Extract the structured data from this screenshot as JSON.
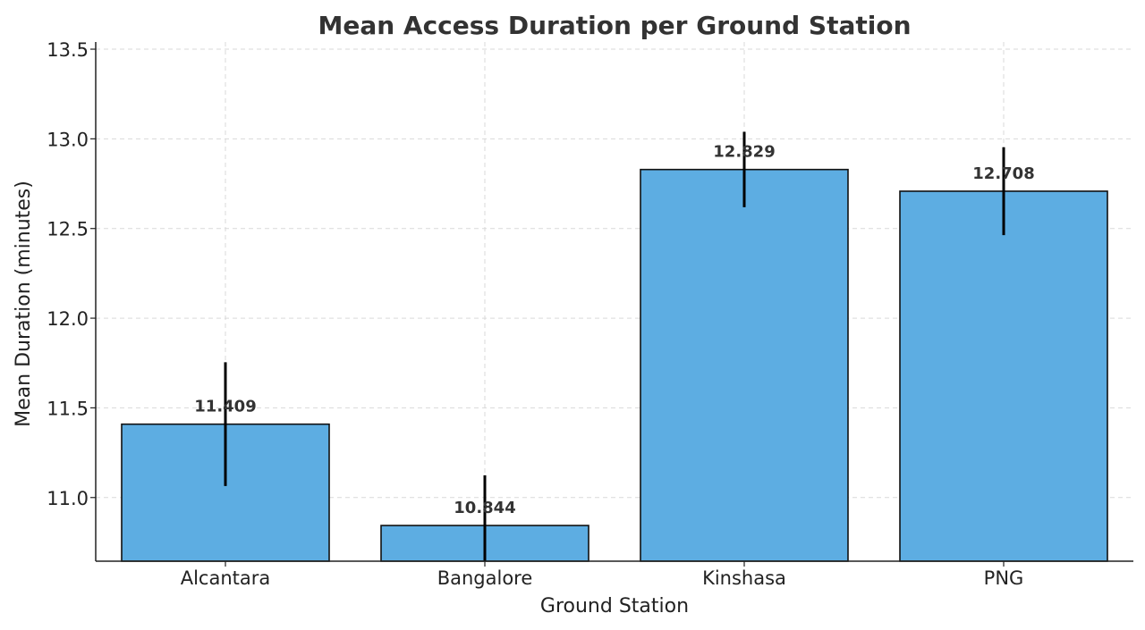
{
  "chart_data": {
    "type": "bar",
    "title": "Mean Access Duration per Ground Station",
    "xlabel": "Ground Station",
    "ylabel": "Mean Duration (minutes)",
    "categories": [
      "Alcantara",
      "Bangalore",
      "Kinshasa",
      "PNG"
    ],
    "values": [
      11.409,
      10.844,
      12.829,
      12.708
    ],
    "value_labels": [
      "11.409",
      "10.844",
      "12.829",
      "12.708"
    ],
    "error": [
      0.345,
      0.28,
      0.21,
      0.245
    ],
    "ylim": [
      10.645,
      13.54
    ],
    "yticks": [
      11.0,
      11.5,
      12.0,
      12.5,
      13.0,
      13.5
    ],
    "ytick_labels": [
      "11.0",
      "11.5",
      "12.0",
      "12.5",
      "13.0",
      "13.5"
    ],
    "grid": true,
    "bar_color": "#5DADE2",
    "edge_color": "#111111",
    "error_color": "#000000"
  }
}
